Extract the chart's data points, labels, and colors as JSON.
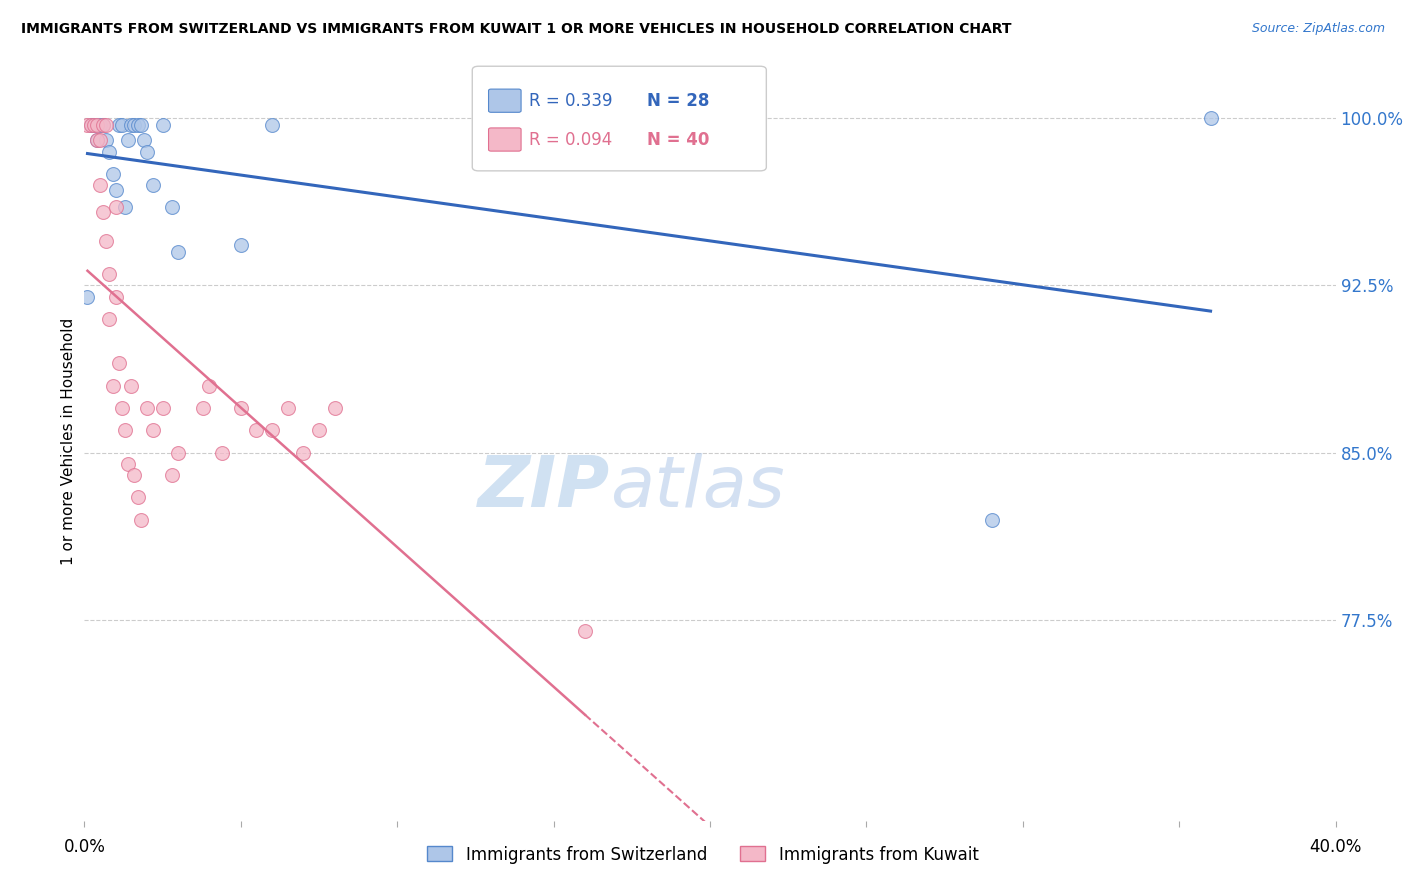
{
  "title": "IMMIGRANTS FROM SWITZERLAND VS IMMIGRANTS FROM KUWAIT 1 OR MORE VEHICLES IN HOUSEHOLD CORRELATION CHART",
  "source": "Source: ZipAtlas.com",
  "ylabel": "1 or more Vehicles in Household",
  "ytick_labels": [
    "100.0%",
    "92.5%",
    "85.0%",
    "77.5%"
  ],
  "ytick_values": [
    1.0,
    0.925,
    0.85,
    0.775
  ],
  "xlim": [
    0.0,
    0.4
  ],
  "ylim": [
    0.685,
    1.025
  ],
  "legend_blue_r": "R = 0.339",
  "legend_blue_n": "N = 28",
  "legend_pink_r": "R = 0.094",
  "legend_pink_n": "N = 40",
  "legend_blue_label": "Immigrants from Switzerland",
  "legend_pink_label": "Immigrants from Kuwait",
  "blue_color": "#AEC6E8",
  "pink_color": "#F4B8C8",
  "blue_edge_color": "#5588CC",
  "pink_edge_color": "#E07090",
  "trendline_blue_color": "#3366BB",
  "trendline_pink_color": "#E07090",
  "watermark_zip": "ZIP",
  "watermark_atlas": "atlas",
  "grid_color": "#CCCCCC",
  "bg_color": "#FFFFFF",
  "blue_x": [
    0.001,
    0.002,
    0.003,
    0.004,
    0.005,
    0.006,
    0.007,
    0.008,
    0.009,
    0.01,
    0.011,
    0.012,
    0.013,
    0.014,
    0.015,
    0.016,
    0.017,
    0.018,
    0.019,
    0.02,
    0.022,
    0.025,
    0.028,
    0.03,
    0.05,
    0.06,
    0.29,
    0.36
  ],
  "blue_y": [
    0.92,
    0.997,
    0.997,
    0.99,
    0.997,
    0.997,
    0.99,
    0.985,
    0.975,
    0.968,
    0.997,
    0.997,
    0.96,
    0.99,
    0.997,
    0.997,
    0.997,
    0.997,
    0.99,
    0.985,
    0.97,
    0.997,
    0.96,
    0.94,
    0.943,
    0.997,
    0.82,
    1.0
  ],
  "pink_x": [
    0.001,
    0.002,
    0.003,
    0.004,
    0.004,
    0.005,
    0.005,
    0.006,
    0.006,
    0.007,
    0.007,
    0.008,
    0.008,
    0.009,
    0.01,
    0.01,
    0.011,
    0.012,
    0.013,
    0.014,
    0.015,
    0.016,
    0.017,
    0.018,
    0.02,
    0.022,
    0.025,
    0.028,
    0.03,
    0.038,
    0.04,
    0.044,
    0.05,
    0.055,
    0.06,
    0.065,
    0.07,
    0.075,
    0.08,
    0.16
  ],
  "pink_y": [
    0.997,
    0.997,
    0.997,
    0.997,
    0.99,
    0.99,
    0.97,
    0.997,
    0.958,
    0.997,
    0.945,
    0.93,
    0.91,
    0.88,
    0.96,
    0.92,
    0.89,
    0.87,
    0.86,
    0.845,
    0.88,
    0.84,
    0.83,
    0.82,
    0.87,
    0.86,
    0.87,
    0.84,
    0.85,
    0.87,
    0.88,
    0.85,
    0.87,
    0.86,
    0.86,
    0.87,
    0.85,
    0.86,
    0.87,
    0.77
  ],
  "marker_size": 100
}
